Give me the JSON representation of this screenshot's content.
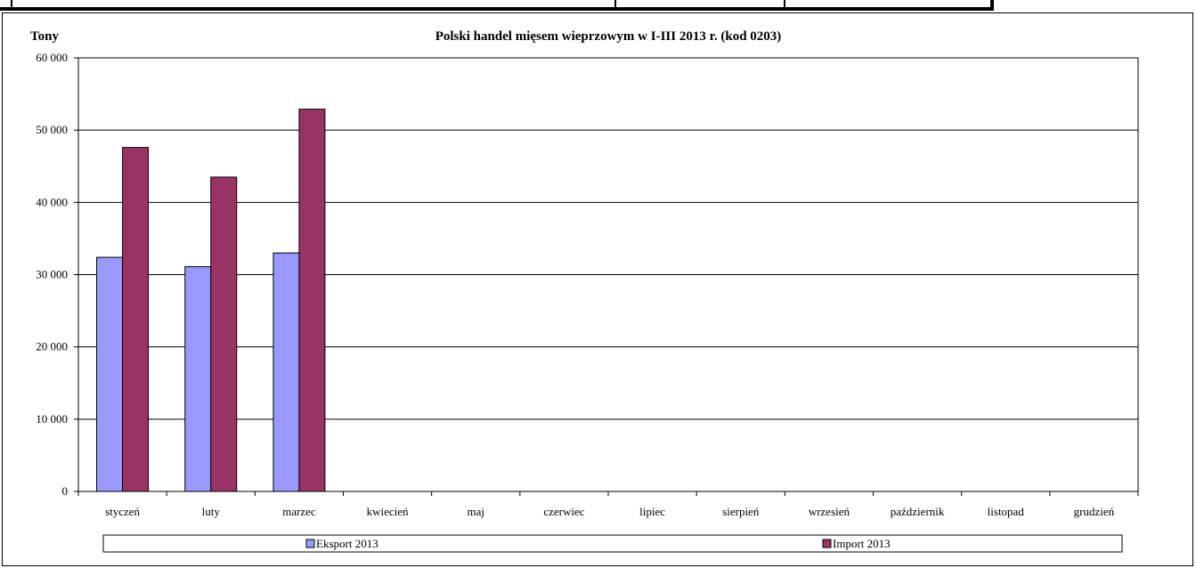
{
  "chart_data": {
    "type": "bar",
    "title": "Polski handel mięsem wieprzowym w I-III 2013 r. (kod 0203)",
    "ylabel": "Tony",
    "xlabel": "",
    "categories": [
      "styczeń",
      "luty",
      "marzec",
      "kwiecień",
      "maj",
      "czerwiec",
      "lipiec",
      "sierpień",
      "wrzesień",
      "październik",
      "listopad",
      "grudzień"
    ],
    "series": [
      {
        "name": "Eksport 2013",
        "color": "#9999ff",
        "values": [
          32400,
          31100,
          33000,
          null,
          null,
          null,
          null,
          null,
          null,
          null,
          null,
          null
        ]
      },
      {
        "name": "Import 2013",
        "color": "#993366",
        "values": [
          47600,
          43500,
          52900,
          null,
          null,
          null,
          null,
          null,
          null,
          null,
          null,
          null
        ]
      }
    ],
    "ylim": [
      0,
      60000
    ],
    "yticks": [
      0,
      10000,
      20000,
      30000,
      40000,
      50000,
      60000
    ],
    "ytick_labels": [
      "0",
      "10 000",
      "20 000",
      "30 000",
      "40 000",
      "50 000",
      "60 000"
    ],
    "grid": true,
    "legend_position": "bottom"
  }
}
